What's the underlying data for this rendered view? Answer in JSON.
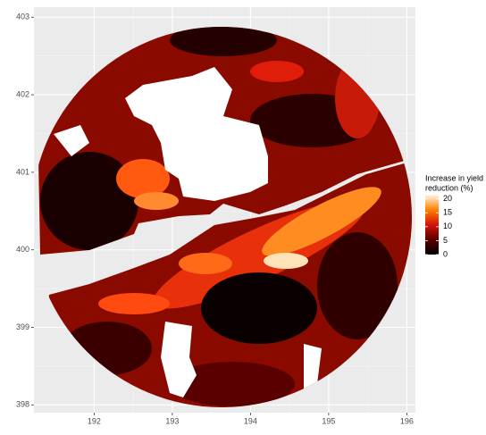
{
  "chart_data": {
    "type": "map",
    "xlim": [
      191.23,
      196.11
    ],
    "ylim": [
      397.9,
      403.13
    ],
    "xticks": [
      192,
      193,
      194,
      195,
      196
    ],
    "yticks": [
      398,
      399,
      400,
      401,
      402,
      403
    ],
    "grid": true,
    "legend": {
      "title": [
        "Increase in yield",
        "reduction (%)"
      ],
      "position": "right",
      "lim": [
        0,
        21.5
      ],
      "ticks": [
        0,
        5,
        10,
        15,
        20
      ],
      "colors": [
        "#000000",
        "#5a0000",
        "#d41408",
        "#ff8000",
        "#fff7ea"
      ]
    }
  }
}
